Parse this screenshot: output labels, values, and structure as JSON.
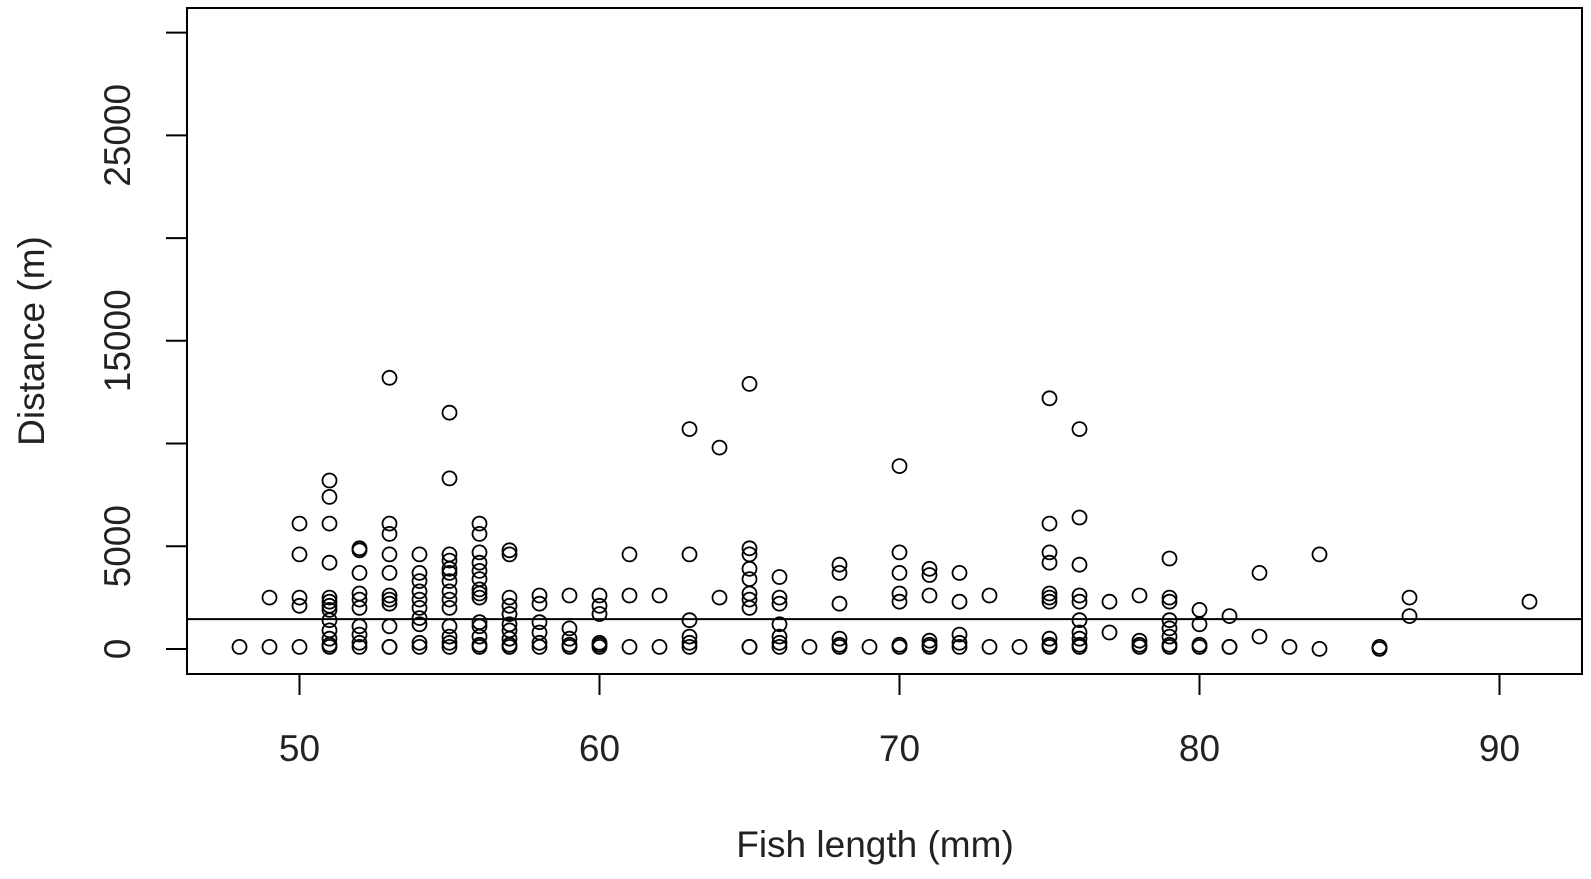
{
  "chart_data": {
    "type": "scatter",
    "title": "",
    "xlabel": "Fish length (mm)",
    "ylabel": "Distance (m)",
    "xlim": [
      46.25,
      92.75
    ],
    "ylim": [
      -1220,
      31200
    ],
    "x_ticks": [
      50,
      60,
      70,
      80,
      90
    ],
    "y_ticks": [
      0,
      5000,
      10000,
      15000,
      20000,
      25000,
      30000
    ],
    "y_tick_labels_shown": [
      "0",
      "5000",
      "15000",
      "25000"
    ],
    "grid": false,
    "legend": "none",
    "marker": "open-circle",
    "reference_line_y": 1450,
    "colors": {
      "points": "#000000",
      "axis": "#000000"
    },
    "points": [
      [
        48,
        100
      ],
      [
        49,
        100
      ],
      [
        50,
        100
      ],
      [
        51,
        100
      ],
      [
        52,
        100
      ],
      [
        53,
        100
      ],
      [
        54,
        100
      ],
      [
        55,
        100
      ],
      [
        56,
        100
      ],
      [
        57,
        100
      ],
      [
        58,
        100
      ],
      [
        59,
        100
      ],
      [
        60,
        100
      ],
      [
        61,
        100
      ],
      [
        62,
        100
      ],
      [
        63,
        100
      ],
      [
        65,
        100
      ],
      [
        66,
        100
      ],
      [
        67,
        100
      ],
      [
        68,
        100
      ],
      [
        69,
        100
      ],
      [
        70,
        100
      ],
      [
        71,
        100
      ],
      [
        72,
        100
      ],
      [
        73,
        100
      ],
      [
        74,
        100
      ],
      [
        75,
        100
      ],
      [
        76,
        100
      ],
      [
        78,
        100
      ],
      [
        79,
        100
      ],
      [
        80,
        100
      ],
      [
        81,
        100
      ],
      [
        83,
        100
      ],
      [
        84,
        0
      ],
      [
        86,
        0
      ],
      [
        49,
        2500
      ],
      [
        50,
        2500
      ],
      [
        50,
        2100
      ],
      [
        50,
        4600
      ],
      [
        50,
        6100
      ],
      [
        51,
        200
      ],
      [
        51,
        500
      ],
      [
        51,
        900
      ],
      [
        51,
        1400
      ],
      [
        51,
        1900
      ],
      [
        51,
        2100
      ],
      [
        51,
        2300
      ],
      [
        51,
        2500
      ],
      [
        51,
        4200
      ],
      [
        51,
        6100
      ],
      [
        51,
        7400
      ],
      [
        51,
        8200
      ],
      [
        52,
        300
      ],
      [
        52,
        700
      ],
      [
        52,
        1100
      ],
      [
        52,
        2000
      ],
      [
        52,
        2400
      ],
      [
        52,
        2700
      ],
      [
        52,
        3700
      ],
      [
        52,
        4800
      ],
      [
        52,
        4900
      ],
      [
        53,
        100
      ],
      [
        53,
        1100
      ],
      [
        53,
        2200
      ],
      [
        53,
        2400
      ],
      [
        53,
        2600
      ],
      [
        53,
        3700
      ],
      [
        53,
        4600
      ],
      [
        53,
        5600
      ],
      [
        53,
        6100
      ],
      [
        53,
        13200
      ],
      [
        54,
        300
      ],
      [
        54,
        1200
      ],
      [
        54,
        1500
      ],
      [
        54,
        2000
      ],
      [
        54,
        2400
      ],
      [
        54,
        2800
      ],
      [
        54,
        3300
      ],
      [
        54,
        3700
      ],
      [
        54,
        4600
      ],
      [
        55,
        300
      ],
      [
        55,
        600
      ],
      [
        55,
        1100
      ],
      [
        55,
        2000
      ],
      [
        55,
        2400
      ],
      [
        55,
        2800
      ],
      [
        55,
        3300
      ],
      [
        55,
        3700
      ],
      [
        55,
        3900
      ],
      [
        55,
        4300
      ],
      [
        55,
        4600
      ],
      [
        55,
        8300
      ],
      [
        55,
        11500
      ],
      [
        56,
        200
      ],
      [
        56,
        600
      ],
      [
        56,
        1100
      ],
      [
        56,
        1300
      ],
      [
        56,
        2500
      ],
      [
        56,
        2700
      ],
      [
        56,
        2900
      ],
      [
        56,
        3400
      ],
      [
        56,
        3800
      ],
      [
        56,
        4200
      ],
      [
        56,
        4700
      ],
      [
        56,
        5600
      ],
      [
        56,
        6100
      ],
      [
        57,
        200
      ],
      [
        57,
        500
      ],
      [
        57,
        900
      ],
      [
        57,
        1200
      ],
      [
        57,
        1700
      ],
      [
        57,
        2100
      ],
      [
        57,
        2500
      ],
      [
        57,
        4600
      ],
      [
        57,
        4800
      ],
      [
        58,
        300
      ],
      [
        58,
        800
      ],
      [
        58,
        1300
      ],
      [
        58,
        2200
      ],
      [
        58,
        2600
      ],
      [
        59,
        200
      ],
      [
        59,
        500
      ],
      [
        59,
        1000
      ],
      [
        59,
        2600
      ],
      [
        60,
        200
      ],
      [
        60,
        300
      ],
      [
        60,
        1700
      ],
      [
        60,
        2100
      ],
      [
        60,
        2600
      ],
      [
        61,
        2600
      ],
      [
        61,
        4600
      ],
      [
        62,
        2600
      ],
      [
        63,
        300
      ],
      [
        63,
        600
      ],
      [
        63,
        1400
      ],
      [
        63,
        4600
      ],
      [
        63,
        10700
      ],
      [
        64,
        2500
      ],
      [
        64,
        9800
      ],
      [
        65,
        100
      ],
      [
        65,
        2000
      ],
      [
        65,
        2400
      ],
      [
        65,
        2700
      ],
      [
        65,
        3400
      ],
      [
        65,
        3900
      ],
      [
        65,
        4600
      ],
      [
        65,
        4900
      ],
      [
        65,
        12900
      ],
      [
        66,
        300
      ],
      [
        66,
        600
      ],
      [
        66,
        1200
      ],
      [
        66,
        2200
      ],
      [
        66,
        2500
      ],
      [
        66,
        3500
      ],
      [
        68,
        200
      ],
      [
        68,
        500
      ],
      [
        68,
        2200
      ],
      [
        68,
        3700
      ],
      [
        68,
        4100
      ],
      [
        70,
        200
      ],
      [
        70,
        2300
      ],
      [
        70,
        2700
      ],
      [
        70,
        3700
      ],
      [
        70,
        4700
      ],
      [
        70,
        8900
      ],
      [
        71,
        200
      ],
      [
        71,
        400
      ],
      [
        71,
        2600
      ],
      [
        71,
        3600
      ],
      [
        71,
        3900
      ],
      [
        72,
        300
      ],
      [
        72,
        700
      ],
      [
        72,
        2300
      ],
      [
        72,
        3700
      ],
      [
        73,
        2600
      ],
      [
        75,
        200
      ],
      [
        75,
        500
      ],
      [
        75,
        2300
      ],
      [
        75,
        2500
      ],
      [
        75,
        2700
      ],
      [
        75,
        4200
      ],
      [
        75,
        4700
      ],
      [
        75,
        6100
      ],
      [
        75,
        12200
      ],
      [
        76,
        200
      ],
      [
        76,
        500
      ],
      [
        76,
        800
      ],
      [
        76,
        1400
      ],
      [
        76,
        2300
      ],
      [
        76,
        2600
      ],
      [
        76,
        4100
      ],
      [
        76,
        6400
      ],
      [
        76,
        10700
      ],
      [
        77,
        800
      ],
      [
        77,
        2300
      ],
      [
        78,
        200
      ],
      [
        78,
        400
      ],
      [
        78,
        2600
      ],
      [
        79,
        200
      ],
      [
        79,
        600
      ],
      [
        79,
        1000
      ],
      [
        79,
        1400
      ],
      [
        79,
        2300
      ],
      [
        79,
        2500
      ],
      [
        79,
        4400
      ],
      [
        80,
        200
      ],
      [
        80,
        1200
      ],
      [
        80,
        1900
      ],
      [
        81,
        100
      ],
      [
        81,
        1600
      ],
      [
        82,
        600
      ],
      [
        82,
        3700
      ],
      [
        84,
        4600
      ],
      [
        86,
        100
      ],
      [
        87,
        1600
      ],
      [
        87,
        2500
      ],
      [
        91,
        2300
      ]
    ]
  }
}
